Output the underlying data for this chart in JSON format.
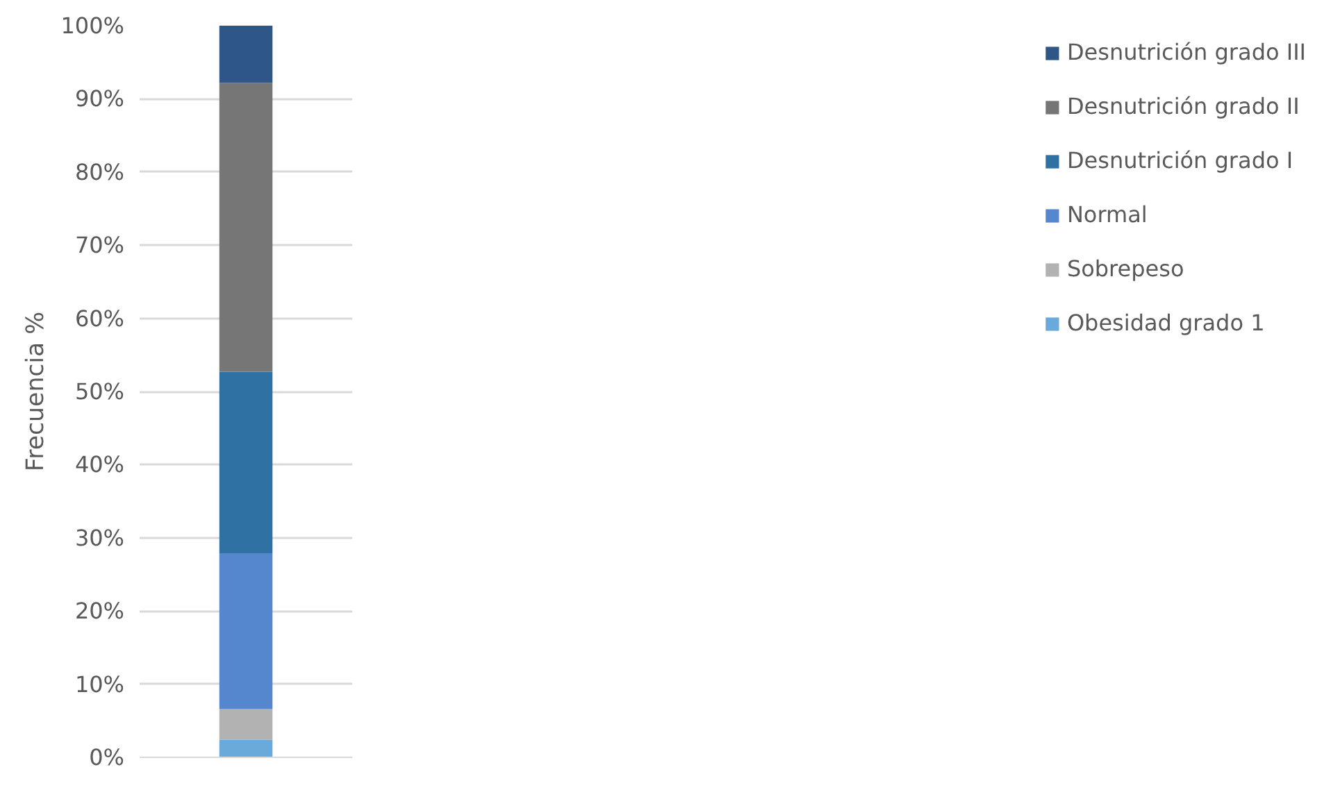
{
  "chart_data": {
    "type": "bar",
    "stacked": true,
    "ylabel": "Frecuencia %",
    "categories": [
      null
    ],
    "series": [
      {
        "name": "Obesidad grado 1",
        "color": "#6aaadb",
        "values": [
          2.4
        ]
      },
      {
        "name": "Sobrepeso",
        "color": "#b2b2b2",
        "values": [
          4.2
        ]
      },
      {
        "name": "Normal",
        "color": "#5587cf",
        "values": [
          21.3
        ]
      },
      {
        "name": "Desnutrición grado I",
        "color": "#2e71a2",
        "values": [
          24.8
        ]
      },
      {
        "name": "Desnutrición grado II",
        "color": "#767676",
        "values": [
          39.5
        ]
      },
      {
        "name": "Desnutrición grado III",
        "color": "#2e5788",
        "values": [
          7.8
        ]
      }
    ],
    "ylim": [
      0,
      100
    ],
    "yticks": [
      {
        "value": 0,
        "label": "0%"
      },
      {
        "value": 10,
        "label": "10%"
      },
      {
        "value": 20,
        "label": "20%"
      },
      {
        "value": 30,
        "label": "30%"
      },
      {
        "value": 40,
        "label": "40%"
      },
      {
        "value": 50,
        "label": "50%"
      },
      {
        "value": 60,
        "label": "60%"
      },
      {
        "value": 70,
        "label": "70%"
      },
      {
        "value": 80,
        "label": "80%"
      },
      {
        "value": 90,
        "label": "90%"
      },
      {
        "value": 100,
        "label": "100%"
      }
    ],
    "grid": "y",
    "legend": "right"
  }
}
